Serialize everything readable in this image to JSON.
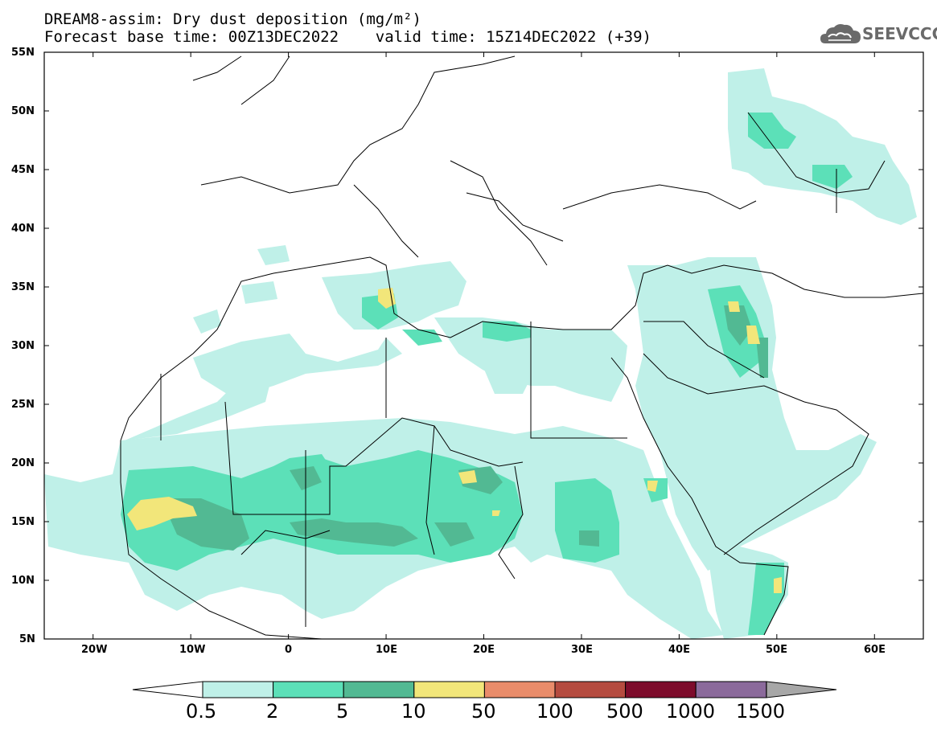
{
  "header": {
    "title_line1": "DREAM8-assim: Dry dust deposition (mg/m²)",
    "title_line2": "Forecast base time: 00Z13DEC2022    valid time: 15Z14DEC2022 (+39)",
    "logo_text": "SEEVCCC"
  },
  "map": {
    "region": "North Africa, Europe, Middle East",
    "lon_range": [
      -25,
      65
    ],
    "lat_range": [
      5,
      55
    ],
    "lat_labels": [
      "55N",
      "50N",
      "45N",
      "40N",
      "35N",
      "30N",
      "25N",
      "20N",
      "15N",
      "10N",
      "5N"
    ],
    "lon_labels": [
      "20W",
      "10W",
      "0",
      "10E",
      "20E",
      "30E",
      "40E",
      "50E",
      "60E"
    ]
  },
  "legend": {
    "levels": [
      "0.5",
      "2",
      "5",
      "10",
      "50",
      "100",
      "500",
      "1000",
      "1500"
    ],
    "colors": [
      "#bff0e8",
      "#5ce0b8",
      "#52b993",
      "#f2e67a",
      "#e98c6a",
      "#b54b3f",
      "#7d0b2b",
      "#8b6a9b",
      "#a7a7a7"
    ]
  }
}
